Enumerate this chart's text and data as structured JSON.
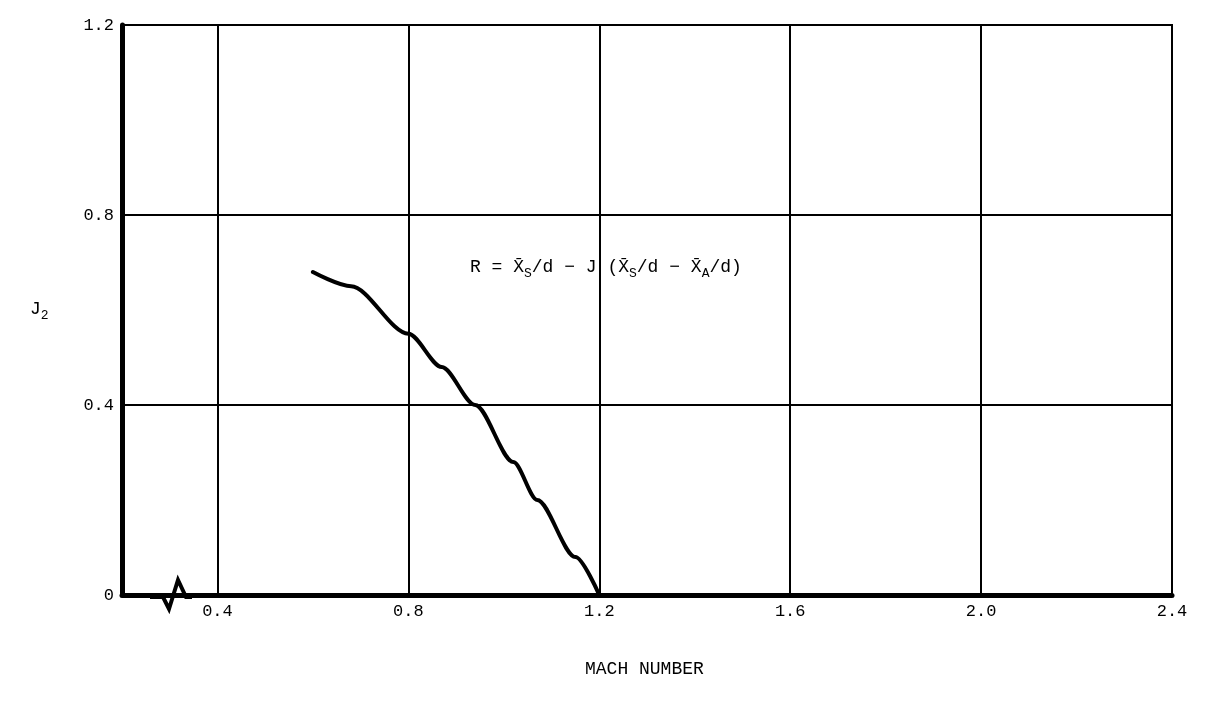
{
  "chart_data": {
    "type": "line",
    "xlabel": "MACH NUMBER",
    "ylabel": "J$_{2}$",
    "x": [
      0.6,
      0.68,
      0.8,
      0.87,
      0.94,
      1.02,
      1.07,
      1.15,
      1.2
    ],
    "series": [
      {
        "color": "#000000",
        "values": [
          0.68,
          0.65,
          0.55,
          0.48,
          0.4,
          0.28,
          0.2,
          0.08,
          0
        ]
      }
    ],
    "xlim": [
      0.2,
      2.4
    ],
    "xticks": [
      0.4,
      0.8,
      1.2,
      1.6,
      {
        "value": 2,
        "label": "2.0"
      },
      2.4
    ],
    "ylim": [
      0,
      1.2
    ],
    "yticks": [
      0,
      0.4,
      0.8,
      1.2
    ],
    "grid": true,
    "marker": "none",
    "line_style": "solid",
    "annotations": [
      "R = X̄$_{S}$/d − J (X̄$_{S}$/d − X̄$_{A}$/d)"
    ]
  }
}
